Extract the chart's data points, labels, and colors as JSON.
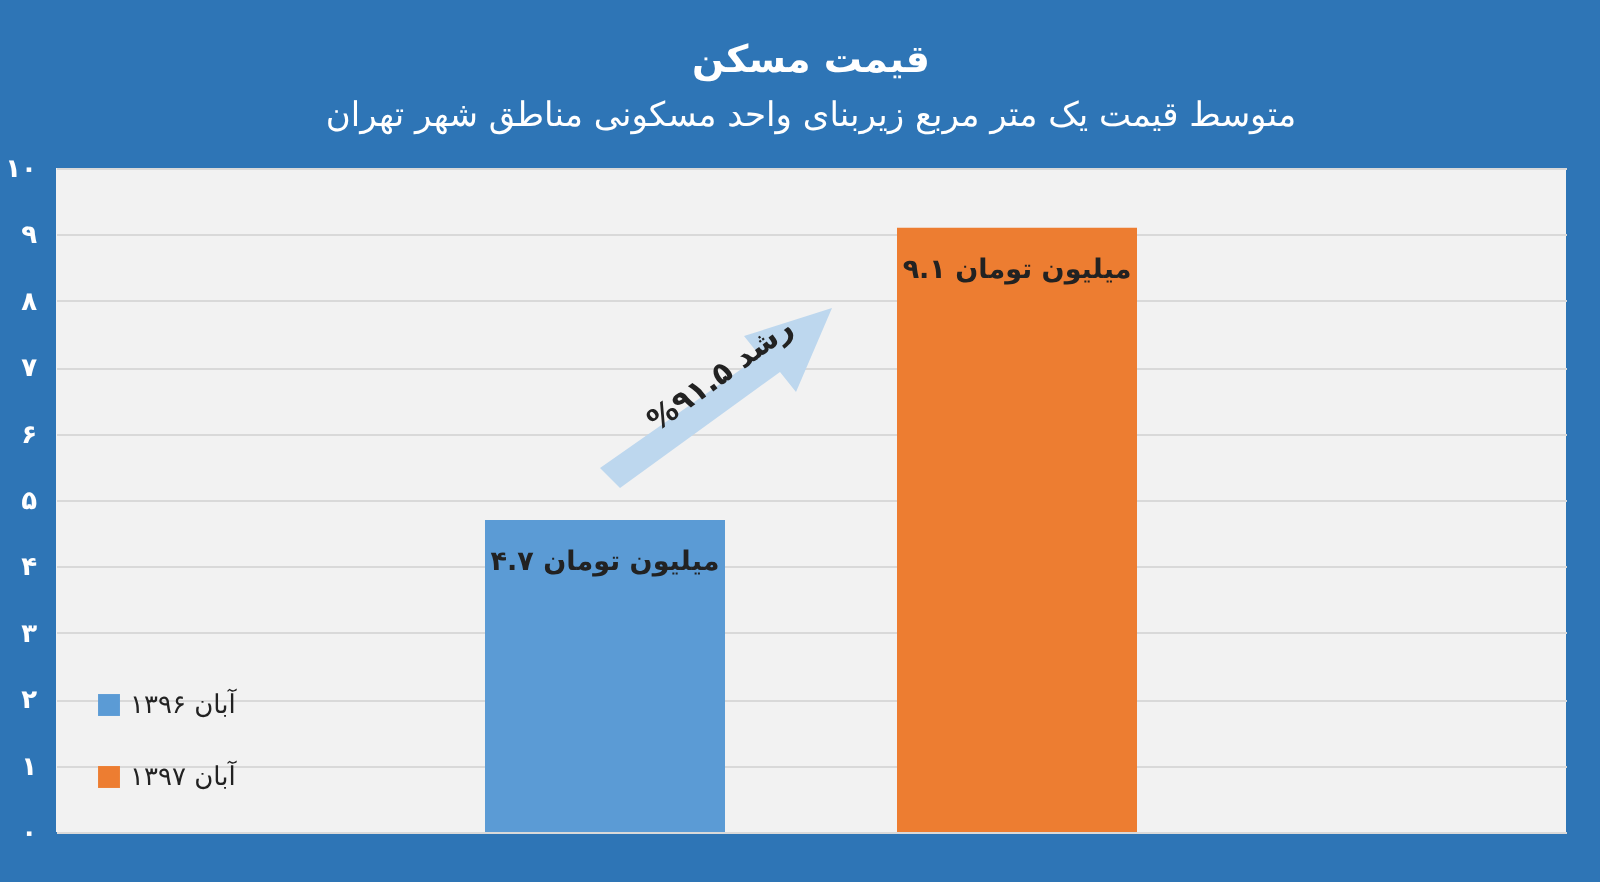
{
  "chart_data": {
    "type": "bar",
    "title": "قیمت مسکن",
    "subtitle": "متوسط قیمت یک متر مربع زیربنای واحد مسکونی مناطق شهر تهران",
    "categories": [
      null,
      null
    ],
    "series": [
      {
        "name": "آبان ۱۳۹۶",
        "color": "#5b9bd5",
        "values": [
          4.7,
          null
        ],
        "value_labels": [
          "۴.۷ میلیون تومان",
          null
        ]
      },
      {
        "name": "آبان ۱۳۹۷",
        "color": "#ed7d31",
        "values": [
          null,
          9.1
        ],
        "value_labels": [
          null,
          "۹.۱ میلیون تومان"
        ]
      }
    ],
    "ylim": [
      0,
      10
    ],
    "yticks": [
      {
        "value": 0,
        "label": "۰"
      },
      {
        "value": 1,
        "label": "۱"
      },
      {
        "value": 2,
        "label": "۲"
      },
      {
        "value": 3,
        "label": "۳"
      },
      {
        "value": 4,
        "label": "۴"
      },
      {
        "value": 5,
        "label": "۵"
      },
      {
        "value": 6,
        "label": "۶"
      },
      {
        "value": 7,
        "label": "۷"
      },
      {
        "value": 8,
        "label": "۸"
      },
      {
        "value": 9,
        "label": "۹"
      },
      {
        "value": 10,
        "label": "۱۰"
      }
    ],
    "grid": "y",
    "legend": "bottom left",
    "annotations": [
      "رشد ۹۱.۵%"
    ]
  }
}
